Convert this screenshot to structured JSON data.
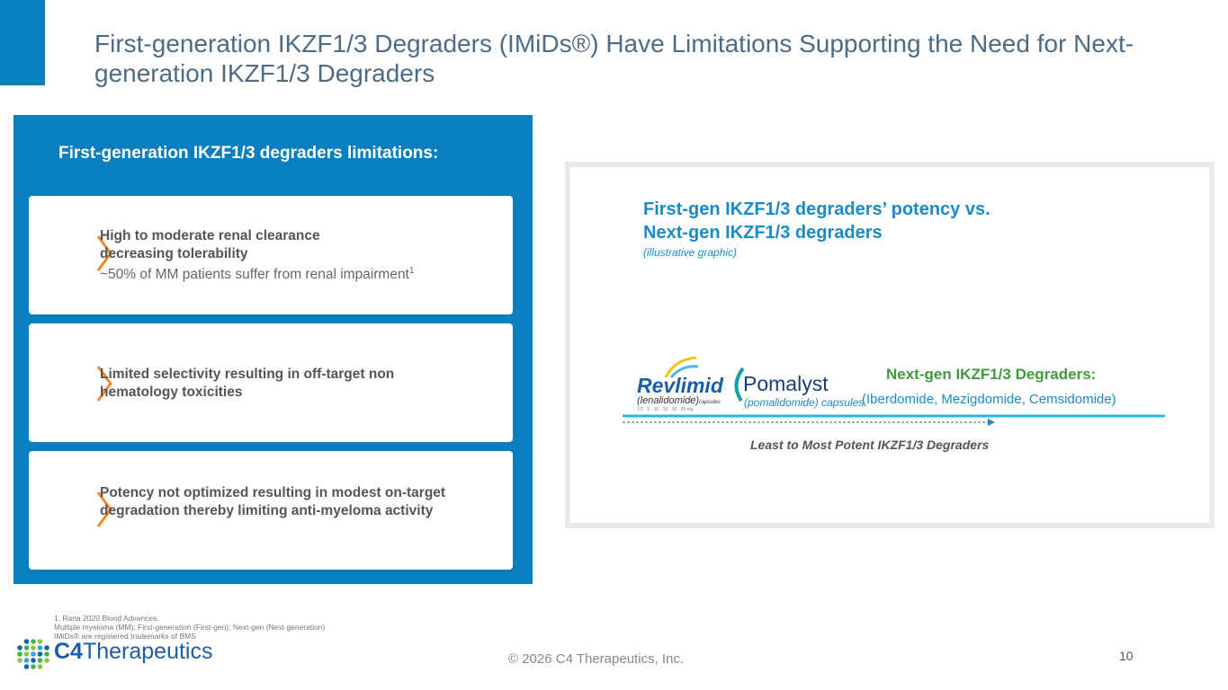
{
  "header": {
    "title": "First-generation IKZF1/3 Degraders (IMiDs®) Have Limitations Supporting the Need for Next-generation IKZF1/3 Degraders"
  },
  "left_panel": {
    "heading": "First-generation IKZF1/3 degraders limitations:",
    "cards": [
      {
        "title": "High to moderate renal clearance decreasing tolerability",
        "detail": "~50% of MM patients suffer from renal impairment",
        "footnote_ref": "1"
      },
      {
        "title": "Limited selectivity resulting in off-target non hematology toxicities"
      },
      {
        "title": "Potency not optimized resulting in modest on-target degradation thereby limiting anti-myeloma activity"
      }
    ]
  },
  "right_panel": {
    "heading": "First-gen IKZF1/3 degraders’ potency vs. Next-gen IKZF1/3 degraders",
    "subheading": "(illustrative graphic)",
    "revlimid": {
      "name": "Revlimid",
      "generic": "(lenalidomide)",
      "form": "capsules",
      "doses": "2.5 · 5 · 10 · 15 · 20 · 25 mg"
    },
    "pomalyst": {
      "name": "Pomalyst",
      "generic": "(pomalidomide) capsules"
    },
    "next_gen": {
      "title": "Next-gen IKZF1/3 Degraders:",
      "examples": "(Iberdomide, Mezigdomide, Cemsidomide)"
    },
    "axis_label": "Least to Most Potent IKZF1/3 Degraders"
  },
  "footnotes": [
    "1. Rana 2020 Blood Advances.",
    "Multiple myeloma (MM); First-generation (First-gen); Next-gen (Next generation)",
    "IMiDs® are registered trademarks of BMS"
  ],
  "footer": {
    "logo_mark": "C4",
    "logo_name": "Therapeutics",
    "copyright": "© 2026 C4 Therapeutics, Inc.",
    "page_number": "10"
  }
}
